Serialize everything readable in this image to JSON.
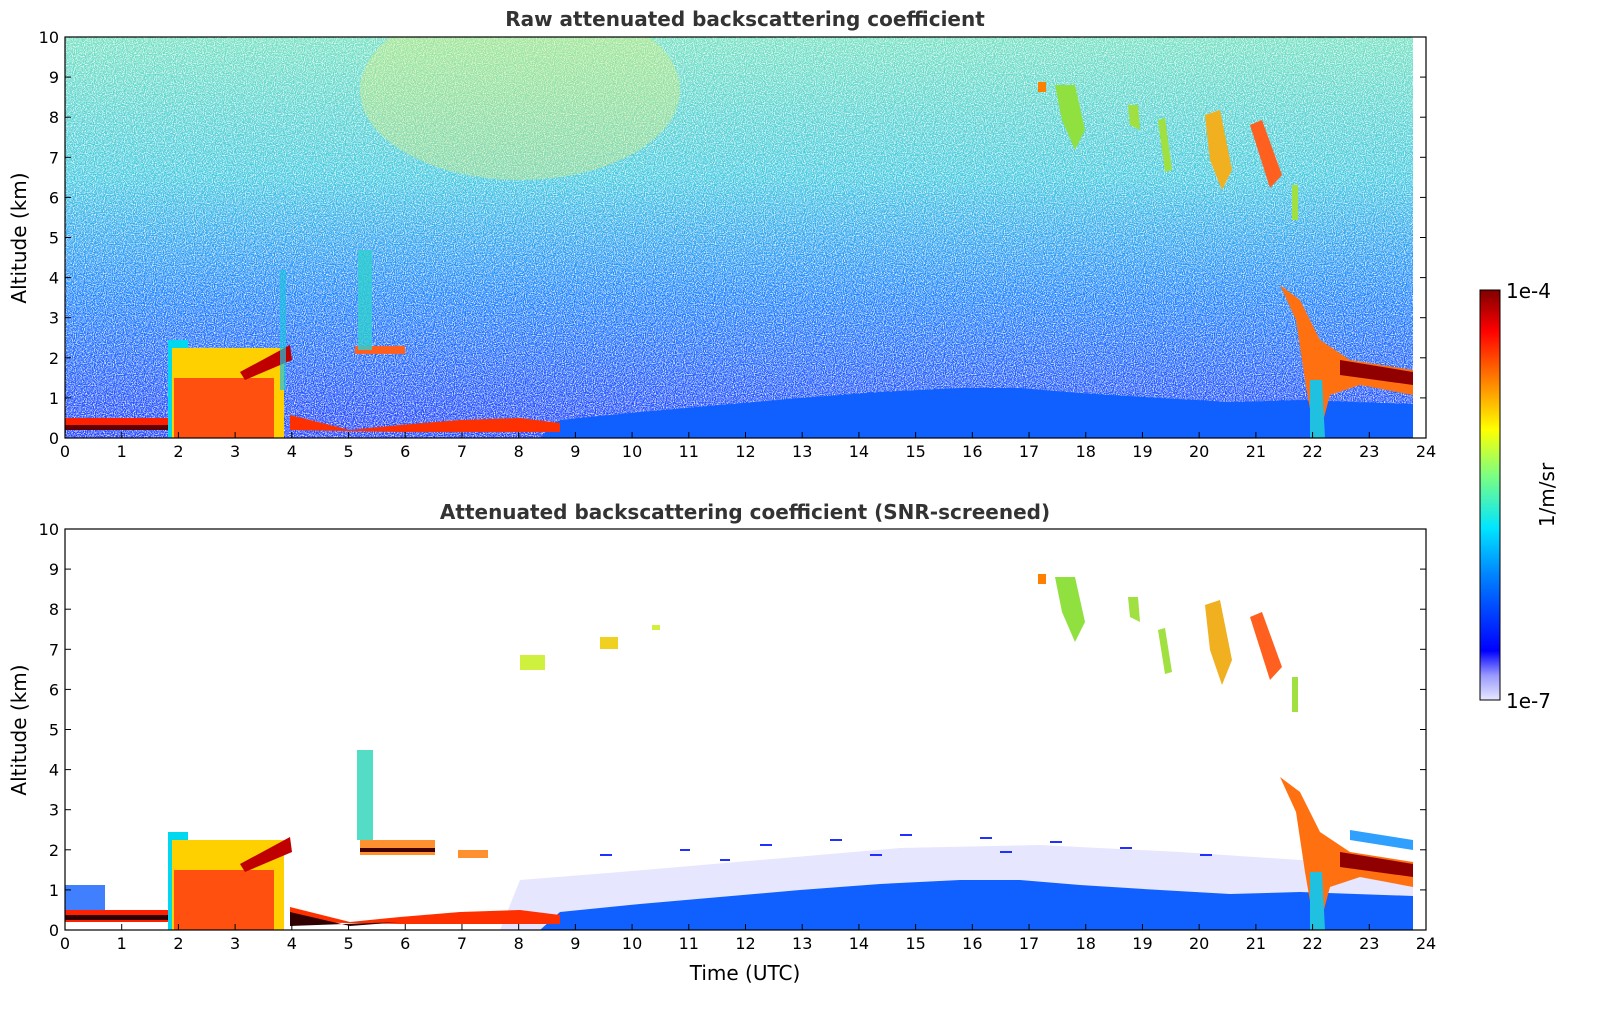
{
  "chart_data": [
    {
      "type": "heatmap",
      "title": "Raw attenuated backscattering coefficient",
      "xlabel": "",
      "ylabel": "Altitude (km)",
      "xlim": [
        0,
        24
      ],
      "ylim": [
        0,
        10
      ],
      "xticks": [
        "0",
        "1",
        "2",
        "3",
        "4",
        "5",
        "6",
        "7",
        "8",
        "9",
        "10",
        "11",
        "12",
        "13",
        "14",
        "15",
        "16",
        "17",
        "18",
        "19",
        "20",
        "21",
        "22",
        "23",
        "24"
      ],
      "yticks": [
        "0",
        "1",
        "2",
        "3",
        "4",
        "5",
        "6",
        "7",
        "8",
        "9",
        "10"
      ],
      "features": [
        {
          "name": "boundary-layer",
          "t_start": 8.5,
          "t_end": 23.8,
          "top_km": [
            0.3,
            0.7,
            1.0,
            1.2,
            1.25,
            1.0,
            0.9
          ],
          "level": "low"
        },
        {
          "name": "early-cloud-base",
          "t_start": 0,
          "t_end": 2.0,
          "top_km": 0.4,
          "level": "very-high"
        },
        {
          "name": "dense-layer",
          "t_start": 1.9,
          "t_end": 3.8,
          "top_km": 2.2,
          "level": "high"
        },
        {
          "name": "aerosol-layer",
          "t_start": 3.8,
          "t_end": 9.0,
          "top_km": 0.5,
          "level": "very-high"
        },
        {
          "name": "cirrus-1",
          "t_start": 17.3,
          "t_end": 17.9,
          "alt_km": [
            7.2,
            8.8
          ],
          "level": "medium"
        },
        {
          "name": "cirrus-2",
          "t_start": 20.0,
          "t_end": 21.8,
          "alt_km": [
            5.5,
            8.0
          ],
          "level": "high"
        },
        {
          "name": "late-cloud",
          "t_start": 21.5,
          "t_end": 23.8,
          "alt_km": [
            0.3,
            3.8
          ],
          "level": "very-high"
        }
      ]
    },
    {
      "type": "heatmap",
      "title": "Attenuated backscattering coefficient (SNR-screened)",
      "xlabel": "Time (UTC)",
      "ylabel": "Altitude (km)",
      "xlim": [
        0,
        24
      ],
      "ylim": [
        0,
        10
      ],
      "xticks": [
        "0",
        "1",
        "2",
        "3",
        "4",
        "5",
        "6",
        "7",
        "8",
        "9",
        "10",
        "11",
        "12",
        "13",
        "14",
        "15",
        "16",
        "17",
        "18",
        "19",
        "20",
        "21",
        "22",
        "23",
        "24"
      ],
      "yticks": [
        "0",
        "1",
        "2",
        "3",
        "4",
        "5",
        "6",
        "7",
        "8",
        "9",
        "10"
      ]
    }
  ],
  "colorbar": {
    "max_label": "1e-4",
    "min_label": "1e-7",
    "unit_label": "1/m/sr",
    "colormap": [
      "#00007f",
      "#0000ff",
      "#007fff",
      "#00ffff",
      "#7fff7f",
      "#ffff00",
      "#ff7f00",
      "#ff0000",
      "#7f0000"
    ]
  }
}
